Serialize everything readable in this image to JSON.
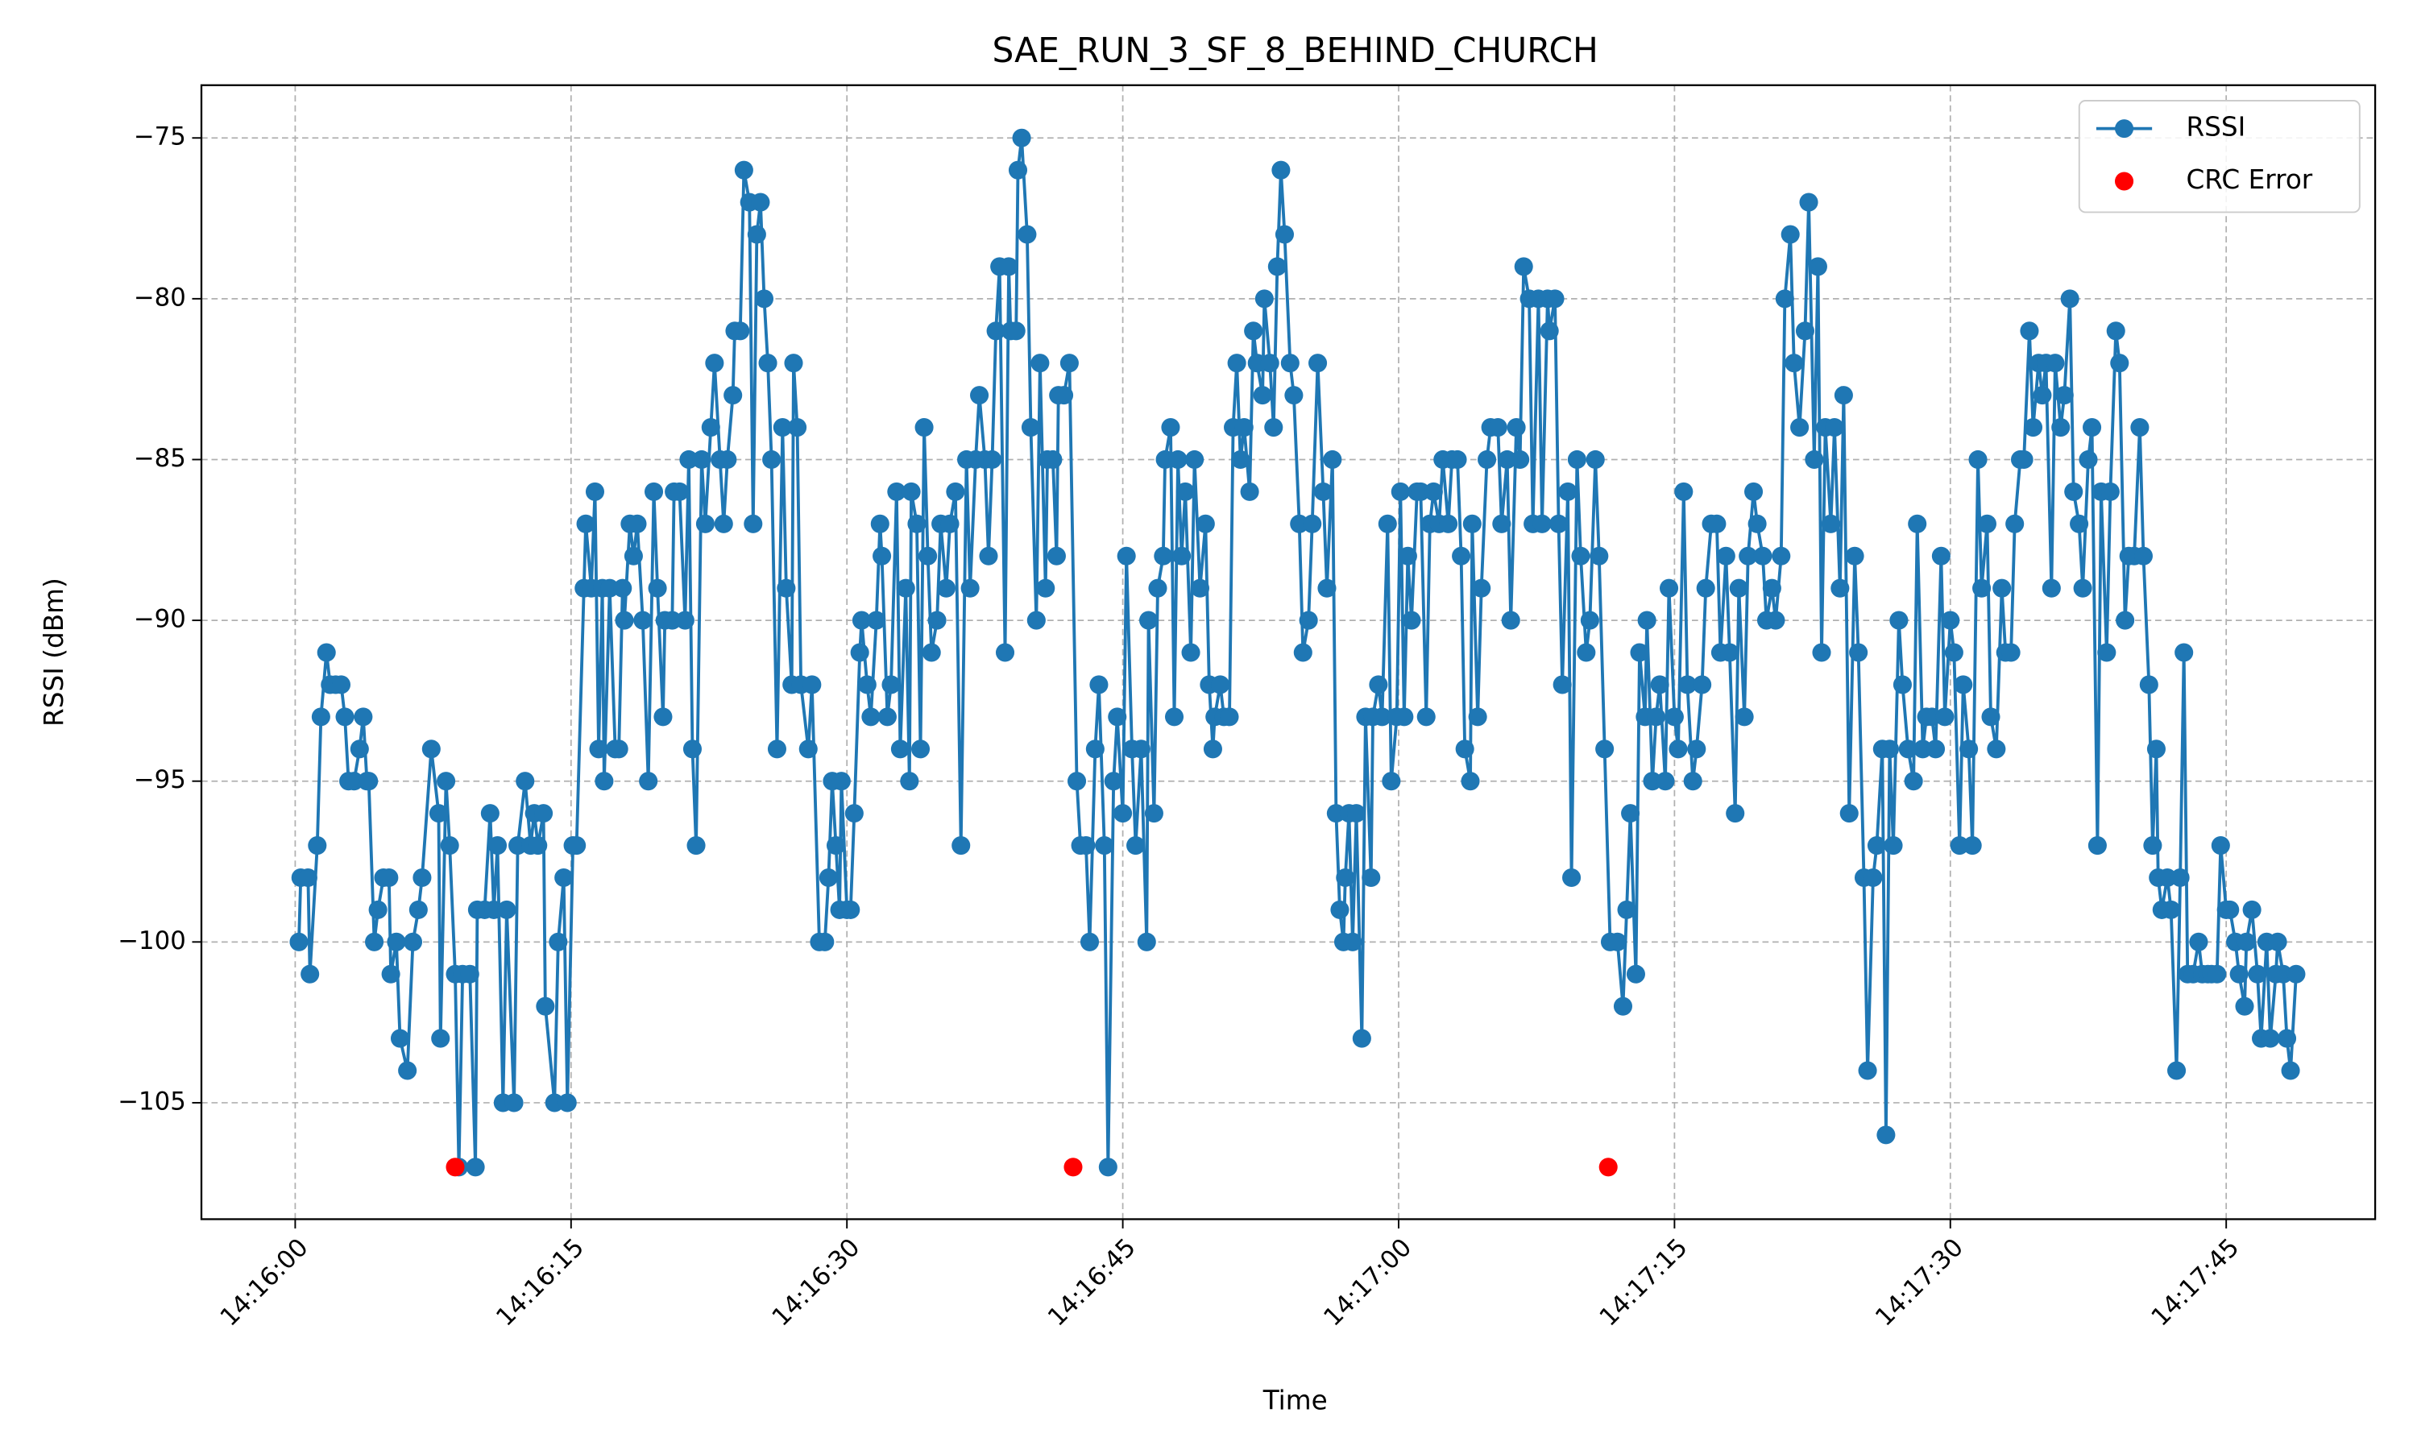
{
  "chart_data": {
    "type": "line",
    "title": "SAE_RUN_3_SF_8_BEHIND_CHURCH",
    "x_label": "Time",
    "y_label": "RSSI (dBm)",
    "xlim": [
      -5.1,
      113.1
    ],
    "ylim": [
      -108.62,
      -73.36
    ],
    "xticks": [
      {
        "value": 0,
        "label": "14:16:00"
      },
      {
        "value": 15,
        "label": "14:16:15"
      },
      {
        "value": 30,
        "label": "14:16:30"
      },
      {
        "value": 45,
        "label": "14:16:45"
      },
      {
        "value": 60,
        "label": "14:17:00"
      },
      {
        "value": 75,
        "label": "14:17:15"
      },
      {
        "value": 90,
        "label": "14:17:30"
      },
      {
        "value": 105,
        "label": "14:17:45"
      }
    ],
    "yticks": [
      {
        "value": -105,
        "label": "−105"
      },
      {
        "value": -100,
        "label": "−100"
      },
      {
        "value": -95,
        "label": "−95"
      },
      {
        "value": -90,
        "label": "−90"
      },
      {
        "value": -85,
        "label": "−85"
      },
      {
        "value": -80,
        "label": "−80"
      },
      {
        "value": -75,
        "label": "−75"
      }
    ],
    "grid": true,
    "legend": "upper right",
    "series": [
      {
        "name": "RSSI",
        "color": "#1f77b4",
        "style": "line-markers",
        "x": [
          0.2,
          0.3,
          0.7,
          0.8,
          1.2,
          1.4,
          1.7,
          1.9,
          2.2,
          2.5,
          2.7,
          2.9,
          3.2,
          3.5,
          3.7,
          3.9,
          4.0,
          4.3,
          4.5,
          4.8,
          5.1,
          5.2,
          5.5,
          5.7,
          6.1,
          6.4,
          6.7,
          6.9,
          7.4,
          7.8,
          7.9,
          8.2,
          8.4,
          8.7,
          8.9,
          9.1,
          9.5,
          9.8,
          9.9,
          10.3,
          10.6,
          10.8,
          11.0,
          11.3,
          11.5,
          11.9,
          12.1,
          12.5,
          12.8,
          13.0,
          13.2,
          13.5,
          13.6,
          14.1,
          14.3,
          14.6,
          14.8,
          15.1,
          15.3,
          15.7,
          15.8,
          16.1,
          16.3,
          16.5,
          16.7,
          16.8,
          17.1,
          17.4,
          17.6,
          17.8,
          17.9,
          18.2,
          18.4,
          18.6,
          18.9,
          19.2,
          19.5,
          19.7,
          20.0,
          20.1,
          20.5,
          20.6,
          20.9,
          21.2,
          21.4,
          21.6,
          21.8,
          22.1,
          22.3,
          22.6,
          22.8,
          23.1,
          23.3,
          23.5,
          23.8,
          23.9,
          24.2,
          24.4,
          24.7,
          24.9,
          25.1,
          25.3,
          25.5,
          25.7,
          25.9,
          26.2,
          26.5,
          26.7,
          27.0,
          27.1,
          27.3,
          27.5,
          27.9,
          28.1,
          28.5,
          28.8,
          29.0,
          29.2,
          29.4,
          29.6,
          29.7,
          30.0,
          30.2,
          30.4,
          30.7,
          30.8,
          31.1,
          31.3,
          31.6,
          31.8,
          31.9,
          32.2,
          32.4,
          32.7,
          32.9,
          33.2,
          33.4,
          33.5,
          33.8,
          34.0,
          34.2,
          34.4,
          34.6,
          34.9,
          35.1,
          35.4,
          35.6,
          35.9,
          36.2,
          36.5,
          36.7,
          37.0,
          37.2,
          37.5,
          37.7,
          37.9,
          38.1,
          38.3,
          38.6,
          38.8,
          38.9,
          39.2,
          39.3,
          39.5,
          39.8,
          40.0,
          40.3,
          40.5,
          40.8,
          40.9,
          41.2,
          41.4,
          41.5,
          41.8,
          42.1,
          42.5,
          42.7,
          43.0,
          43.2,
          43.5,
          43.7,
          44.0,
          44.2,
          44.5,
          44.7,
          45.0,
          45.2,
          45.5,
          45.7,
          46.0,
          46.3,
          46.4,
          46.7,
          46.9,
          47.2,
          47.3,
          47.6,
          47.8,
          48.0,
          48.2,
          48.4,
          48.7,
          48.9,
          49.2,
          49.5,
          49.7,
          49.9,
          50.0,
          50.3,
          50.5,
          50.8,
          51.0,
          51.2,
          51.4,
          51.6,
          51.9,
          52.1,
          52.3,
          52.6,
          52.7,
          53.0,
          53.2,
          53.4,
          53.6,
          53.8,
          54.1,
          54.3,
          54.6,
          54.8,
          55.1,
          55.3,
          55.6,
          55.9,
          56.1,
          56.4,
          56.6,
          56.8,
          57.0,
          57.1,
          57.3,
          57.5,
          57.7,
          58.0,
          58.2,
          58.5,
          58.6,
          58.9,
          59.1,
          59.4,
          59.6,
          59.9,
          60.1,
          60.3,
          60.5,
          60.7,
          61.0,
          61.2,
          61.5,
          61.7,
          61.9,
          62.2,
          62.4,
          62.7,
          62.9,
          63.2,
          63.4,
          63.6,
          63.9,
          64.0,
          64.3,
          64.5,
          64.8,
          65.0,
          65.4,
          65.6,
          65.9,
          66.1,
          66.4,
          66.6,
          66.8,
          67.1,
          67.3,
          67.6,
          67.8,
          68.1,
          68.2,
          68.5,
          68.7,
          68.9,
          69.2,
          69.4,
          69.7,
          69.9,
          70.2,
          70.4,
          70.7,
          70.9,
          71.2,
          71.5,
          71.9,
          72.2,
          72.4,
          72.6,
          72.9,
          73.1,
          73.4,
          73.5,
          73.8,
          74.0,
          74.2,
          74.5,
          74.7,
          75.0,
          75.2,
          75.5,
          75.7,
          76.0,
          76.2,
          76.5,
          76.7,
          77.0,
          77.3,
          77.5,
          77.8,
          78.0,
          78.3,
          78.5,
          78.8,
          79.0,
          79.3,
          79.5,
          79.8,
          80.0,
          80.3,
          80.5,
          80.8,
          81.0,
          81.3,
          81.5,
          81.8,
          82.1,
          82.3,
          82.6,
          82.8,
          83.0,
          83.2,
          83.5,
          83.7,
          84.0,
          84.2,
          84.5,
          84.8,
          85.0,
          85.3,
          85.5,
          85.8,
          86.0,
          86.3,
          86.5,
          86.7,
          86.9,
          87.2,
          87.4,
          87.7,
          88.0,
          88.2,
          88.5,
          88.7,
          89.0,
          89.2,
          89.5,
          89.7,
          90.0,
          90.2,
          90.5,
          90.7,
          91.0,
          91.2,
          91.5,
          91.7,
          92.0,
          92.2,
          92.5,
          92.8,
          93.0,
          93.3,
          93.5,
          93.8,
          94.0,
          94.3,
          94.5,
          94.8,
          95.0,
          95.2,
          95.5,
          95.7,
          96.0,
          96.2,
          96.5,
          96.7,
          97.0,
          97.2,
          97.5,
          97.7,
          98.0,
          98.2,
          98.5,
          98.7,
          99.0,
          99.2,
          99.5,
          99.7,
          100.0,
          100.3,
          100.5,
          100.8,
          101.0,
          101.2,
          101.3,
          101.5,
          101.8,
          102.0,
          102.3,
          102.5,
          102.7,
          102.9,
          103.2,
          103.5,
          103.7,
          104.0,
          104.2,
          104.5,
          104.7,
          105.0,
          105.2,
          105.5,
          105.7,
          106.0,
          106.1,
          106.4,
          106.7,
          106.9,
          107.2,
          107.4,
          107.7,
          107.8,
          108.1,
          108.3,
          108.5,
          108.8
        ],
        "values": [
          -100,
          -98,
          -98,
          -101,
          -97,
          -93,
          -91,
          -92,
          -92,
          -92,
          -93,
          -95,
          -95,
          -94,
          -93,
          -95,
          -95,
          -100,
          -99,
          -98,
          -98,
          -101,
          -100,
          -103,
          -104,
          -100,
          -99,
          -98,
          -94,
          -96,
          -103,
          -95,
          -97,
          -101,
          -107,
          -101,
          -101,
          -107,
          -99,
          -99,
          -96,
          -99,
          -97,
          -105,
          -99,
          -105,
          -97,
          -95,
          -97,
          -96,
          -97,
          -96,
          -102,
          -105,
          -100,
          -98,
          -105,
          -97,
          -97,
          -89,
          -87,
          -89,
          -86,
          -94,
          -89,
          -95,
          -89,
          -94,
          -94,
          -89,
          -90,
          -87,
          -88,
          -87,
          -90,
          -95,
          -86,
          -89,
          -93,
          -90,
          -90,
          -86,
          -86,
          -90,
          -85,
          -94,
          -97,
          -85,
          -87,
          -84,
          -82,
          -85,
          -87,
          -85,
          -83,
          -81,
          -81,
          -76,
          -77,
          -87,
          -78,
          -77,
          -80,
          -82,
          -85,
          -94,
          -84,
          -89,
          -92,
          -82,
          -84,
          -92,
          -94,
          -92,
          -100,
          -100,
          -98,
          -95,
          -97,
          -99,
          -95,
          -99,
          -99,
          -96,
          -91,
          -90,
          -92,
          -93,
          -90,
          -87,
          -88,
          -93,
          -92,
          -86,
          -94,
          -89,
          -95,
          -86,
          -87,
          -94,
          -84,
          -88,
          -91,
          -90,
          -87,
          -89,
          -87,
          -86,
          -97,
          -85,
          -89,
          -85,
          -83,
          -85,
          -88,
          -85,
          -81,
          -79,
          -91,
          -79,
          -81,
          -81,
          -76,
          -75,
          -78,
          -84,
          -90,
          -82,
          -89,
          -85,
          -85,
          -88,
          -83,
          -83,
          -82,
          -95,
          -97,
          -97,
          -100,
          -94,
          -92,
          -97,
          -107,
          -95,
          -93,
          -96,
          -88,
          -94,
          -97,
          -94,
          -100,
          -90,
          -96,
          -89,
          -88,
          -85,
          -84,
          -93,
          -85,
          -88,
          -86,
          -91,
          -85,
          -89,
          -87,
          -92,
          -94,
          -93,
          -92,
          -93,
          -93,
          -84,
          -82,
          -85,
          -84,
          -86,
          -81,
          -82,
          -83,
          -80,
          -82,
          -84,
          -79,
          -76,
          -78,
          -82,
          -83,
          -87,
          -91,
          -90,
          -87,
          -82,
          -86,
          -89,
          -85,
          -96,
          -99,
          -100,
          -98,
          -96,
          -100,
          -96,
          -103,
          -93,
          -98,
          -93,
          -92,
          -93,
          -87,
          -95,
          -93,
          -86,
          -93,
          -88,
          -90,
          -86,
          -86,
          -93,
          -87,
          -86,
          -87,
          -85,
          -87,
          -85,
          -85,
          -88,
          -94,
          -95,
          -87,
          -93,
          -89,
          -85,
          -84,
          -84,
          -87,
          -85,
          -90,
          -84,
          -85,
          -79,
          -80,
          -87,
          -80,
          -87,
          -80,
          -81,
          -80,
          -87,
          -92,
          -86,
          -98,
          -85,
          -88,
          -91,
          -90,
          -85,
          -88,
          -94,
          -100,
          -100,
          -102,
          -99,
          -96,
          -101,
          -91,
          -93,
          -90,
          -95,
          -93,
          -92,
          -95,
          -89,
          -93,
          -94,
          -86,
          -92,
          -95,
          -94,
          -92,
          -89,
          -87,
          -87,
          -91,
          -88,
          -91,
          -96,
          -89,
          -93,
          -88,
          -86,
          -87,
          -88,
          -90,
          -89,
          -90,
          -88,
          -80,
          -78,
          -82,
          -84,
          -81,
          -77,
          -85,
          -79,
          -91,
          -84,
          -87,
          -84,
          -89,
          -83,
          -96,
          -88,
          -91,
          -98,
          -104,
          -98,
          -97,
          -94,
          -106,
          -94,
          -97,
          -90,
          -92,
          -94,
          -95,
          -87,
          -94,
          -93,
          -93,
          -94,
          -88,
          -93,
          -90,
          -91,
          -97,
          -92,
          -94,
          -97,
          -85,
          -89,
          -87,
          -93,
          -94,
          -89,
          -91,
          -91,
          -87,
          -85,
          -85,
          -81,
          -84,
          -82,
          -83,
          -82,
          -89,
          -82,
          -84,
          -83,
          -80,
          -86,
          -87,
          -89,
          -85,
          -84,
          -97,
          -86,
          -91,
          -86,
          -81,
          -82,
          -90,
          -88,
          -88,
          -84,
          -88,
          -92,
          -97,
          -94,
          -98,
          -99,
          -98,
          -99,
          -104,
          -98,
          -91,
          -101,
          -101,
          -100,
          -101,
          -101,
          -101,
          -101,
          -97,
          -99,
          -99,
          -100,
          -101,
          -102,
          -100,
          -99,
          -101,
          -103,
          -100,
          -103,
          -101,
          -100,
          -101,
          -103,
          -104,
          -101
        ]
      },
      {
        "name": "CRC Error",
        "color": "#ff0000",
        "style": "scatter",
        "x": [
          8.7,
          42.3,
          71.4
        ],
        "values": [
          -107,
          -107,
          -107
        ]
      }
    ]
  }
}
